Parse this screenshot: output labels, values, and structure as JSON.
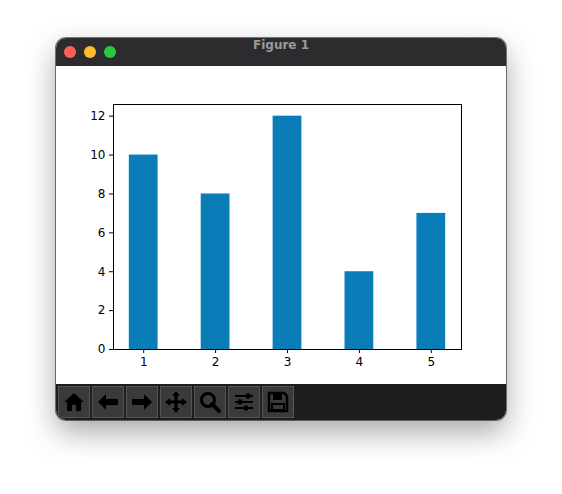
{
  "window": {
    "title": "Figure 1"
  },
  "chart_data": {
    "type": "bar",
    "x": [
      1,
      2,
      3,
      4,
      5
    ],
    "values": [
      10,
      8,
      12,
      4,
      7
    ],
    "color": "#0a7db8",
    "xlim": [
      0.58,
      5.42
    ],
    "xticks": [
      1,
      2,
      3,
      4,
      5
    ],
    "ylim": [
      0,
      12.6
    ],
    "yticks": [
      0,
      2,
      4,
      6,
      8,
      10,
      12
    ],
    "grid": false
  }
}
